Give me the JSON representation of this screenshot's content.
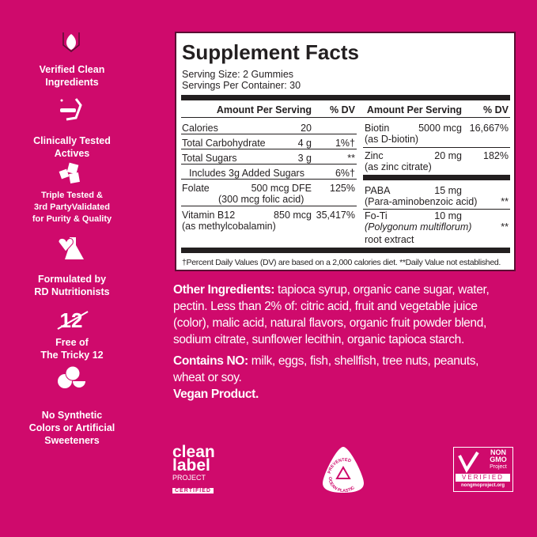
{
  "colors": {
    "background": "#cf0a6c",
    "panel": "#ffffff",
    "text": "#231f20"
  },
  "features": [
    {
      "icon": "hands-leaf-icon",
      "lines": [
        "Verified Clean",
        "Ingredients"
      ]
    },
    {
      "icon": "microscope-icon",
      "lines": [
        "Clinically Tested",
        "Actives"
      ]
    },
    {
      "icon": "checklist-icon",
      "lines": [
        "Triple Tested &",
        "3rd PartyValidated",
        "for Purity & Quality"
      ]
    },
    {
      "icon": "heart-flask-icon",
      "lines": [
        "Formulated by",
        "RD Nutritionists"
      ]
    },
    {
      "icon": "crossed-12-icon",
      "icon_text": "12",
      "lines": [
        "Free of",
        "The Tricky 12"
      ]
    },
    {
      "icon": "fruit-icon",
      "lines": [
        "No Synthetic",
        "Colors or Artificial",
        "Sweeteners"
      ]
    }
  ],
  "facts": {
    "title": "Supplement Facts",
    "serving_size": "Serving Size: 2 Gummies",
    "servings_per_container": "Servings Per Container: 30",
    "header_amount": "Amount Per Serving",
    "header_dv": "% DV",
    "left_rows": [
      {
        "name": "Calories",
        "amount": "20",
        "dv": ""
      },
      {
        "name": "Total Carbohydrate",
        "amount": "4 g",
        "dv": "1%†"
      },
      {
        "name": "Total Sugars",
        "amount": "3 g",
        "dv": "**"
      },
      {
        "name": "Includes 3g Added Sugars",
        "amount": "",
        "dv": "6%†"
      },
      {
        "name": "Folate",
        "amount": "500 mcg DFE",
        "sub": "(300 mcg folic acid)",
        "dv": "125%"
      },
      {
        "name": "Vitamin B12",
        "amount": "850 mcg",
        "sub": "(as methylcobalamin)",
        "dv": "35,417%"
      }
    ],
    "right_rows": [
      {
        "name": "Biotin",
        "amount": "5000 mcg",
        "sub": "(as D-biotin)",
        "dv": "16,667%"
      },
      {
        "name": "Zinc",
        "amount": "20 mg",
        "sub": "(as zinc citrate)",
        "dv": "182%"
      },
      {
        "name": "PABA",
        "amount": "15 mg",
        "sub": "(Para-aminobenzoic acid)",
        "dv": "**"
      },
      {
        "name": "Fo-Ti",
        "amount": "10 mg",
        "sub": "(Polygonum multiflorum)",
        "sub2": "root extract",
        "dv": "**"
      }
    ],
    "footnote": "†Percent Daily Values (DV) are based on a 2,000 calories diet. **Daily Value not established."
  },
  "ingredients": {
    "other_label": "Other Ingredients:",
    "other_lines": [
      " tapioca syrup, organic cane sugar, water,",
      "pectin. Less than 2% of: citric acid, fruit and vegetable juice",
      "(color), malic acid, natural flavors, organic fruit powder blend,",
      "sodium citrate, sunflower lecithin, organic tapioca starch."
    ],
    "contains_label": "Contains NO:",
    "contains_lines": [
      " milk, eggs, fish, shellfish, tree nuts, peanuts,",
      "wheat or soy."
    ],
    "vegan": "Vegan Product."
  },
  "logos": {
    "clean_label": [
      "clean",
      "label",
      "PROJECT",
      "CERTIFIED"
    ],
    "ocean_plastic": [
      "PREVENTED",
      "OCEAN PLASTIC"
    ],
    "non_gmo": [
      "NON",
      "GMO",
      "Project",
      "VERIFIED",
      "nongmoproject.org"
    ]
  }
}
